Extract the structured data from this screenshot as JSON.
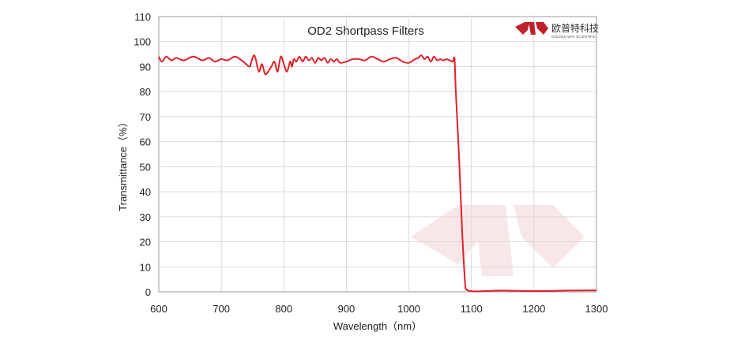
{
  "chart_data": {
    "type": "line",
    "title": "OD2  Shortpass Filters",
    "xlabel": "Wavelength（nm）",
    "ylabel": "Transmittance（%）",
    "xlim": [
      600,
      1300
    ],
    "ylim": [
      0,
      110
    ],
    "xticks": [
      600,
      700,
      800,
      900,
      1000,
      1100,
      1200,
      1300
    ],
    "yticks": [
      0,
      10,
      20,
      30,
      40,
      50,
      60,
      70,
      80,
      90,
      100,
      110
    ],
    "grid": true,
    "series": [
      {
        "color": "#e0202a",
        "x": [
          600,
          605,
          612,
          620,
          628,
          640,
          655,
          670,
          680,
          690,
          700,
          710,
          722,
          735,
          745,
          748,
          752,
          755,
          760,
          765,
          770,
          775,
          780,
          785,
          790,
          795,
          800,
          805,
          810,
          813,
          816,
          820,
          825,
          830,
          835,
          840,
          845,
          850,
          855,
          860,
          865,
          870,
          875,
          880,
          885,
          890,
          900,
          910,
          920,
          930,
          940,
          950,
          960,
          970,
          980,
          990,
          1000,
          1010,
          1015,
          1020,
          1025,
          1030,
          1035,
          1040,
          1045,
          1050,
          1055,
          1060,
          1065,
          1070,
          1073,
          1075,
          1080,
          1085,
          1090,
          1092,
          1095,
          1100,
          1110,
          1150,
          1200,
          1250,
          1300
        ],
        "y": [
          94,
          92,
          94,
          92.5,
          93.5,
          92.5,
          94,
          92.5,
          93.5,
          92,
          93,
          92.5,
          94,
          92,
          90,
          92,
          94.5,
          93,
          88,
          91,
          87,
          88,
          90,
          92,
          88,
          94,
          91,
          88,
          92,
          90,
          93,
          92,
          94,
          92,
          94,
          92.5,
          93.5,
          91.5,
          93.5,
          92.5,
          93.5,
          91.5,
          93,
          92,
          93,
          91.5,
          92,
          93,
          93,
          92.5,
          94,
          93,
          92,
          93,
          93.5,
          92,
          91.5,
          93,
          93.5,
          94.5,
          93,
          94,
          92,
          94,
          92.5,
          93,
          92.5,
          93,
          92.5,
          92,
          93,
          80,
          55,
          25,
          3,
          1,
          0.5,
          0.3,
          0.2,
          0.5,
          0.3,
          0.5,
          0.6
        ]
      }
    ]
  },
  "logo": {
    "brand_cn": "欧普特科技",
    "brand_en": "GOLDEN WAY SCIENTIFIC"
  }
}
